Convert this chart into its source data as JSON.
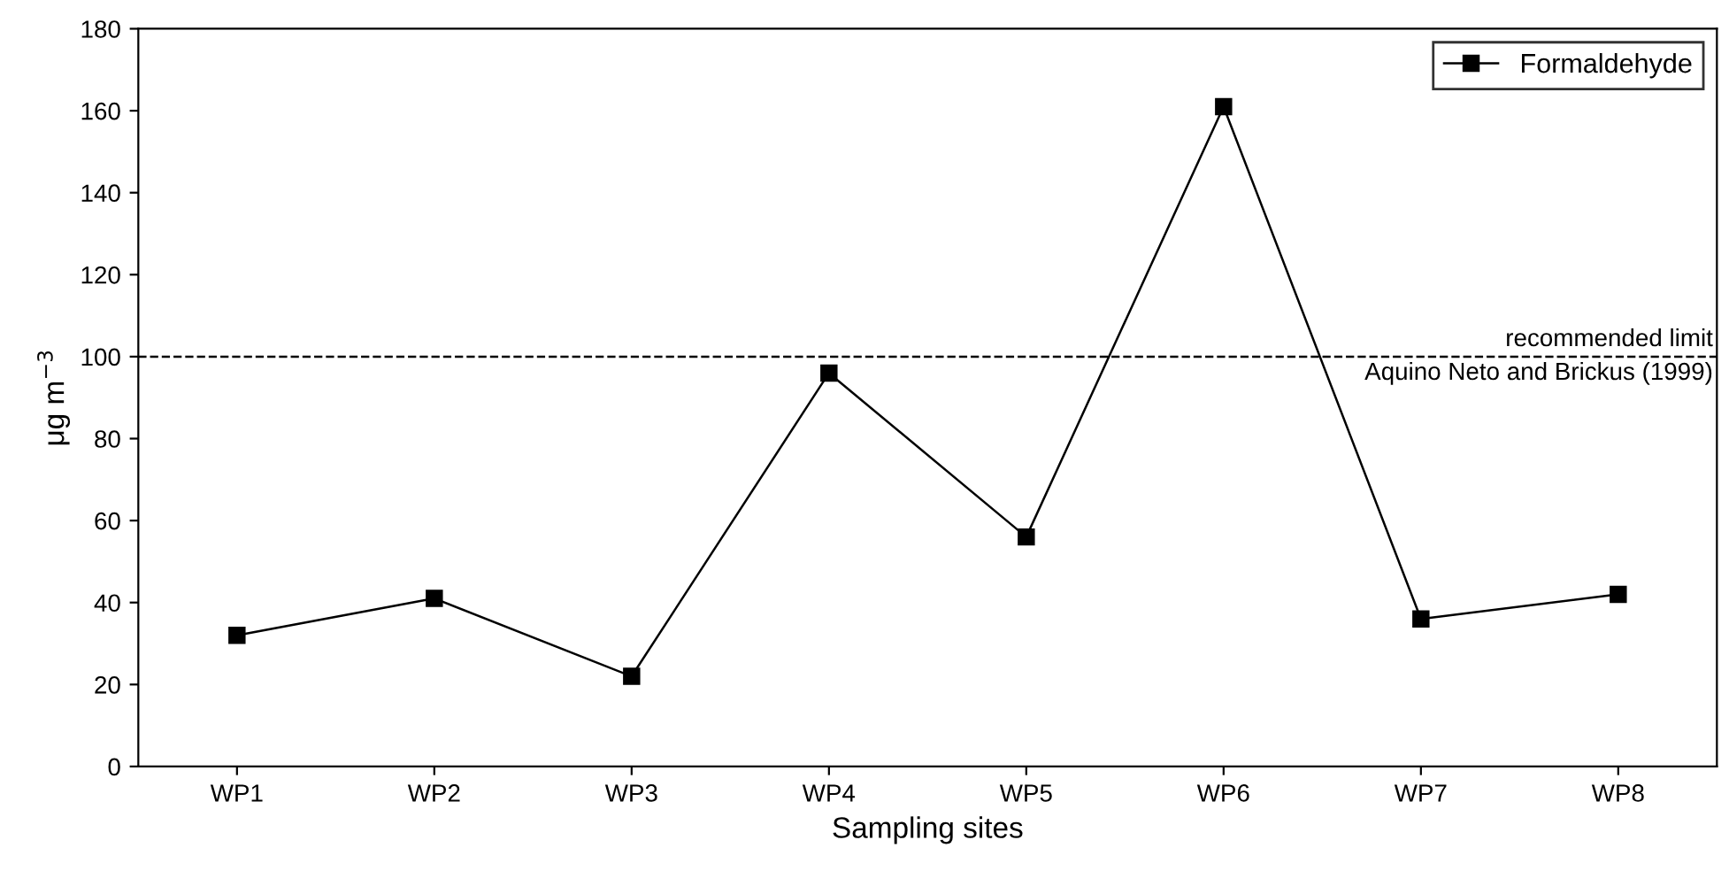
{
  "chart_data": {
    "type": "line",
    "xlabel": "Sampling sites",
    "ylabel": "μg m$^{−3}$",
    "categories": [
      "WP1",
      "WP2",
      "WP3",
      "WP4",
      "WP5",
      "WP6",
      "WP7",
      "WP8"
    ],
    "series": [
      {
        "name": "Formaldehyde",
        "color": "#000000",
        "values": [
          32,
          41,
          22,
          96,
          56,
          161,
          36,
          42
        ]
      }
    ],
    "ylim": [
      0,
      180
    ],
    "yticks": [
      0,
      20,
      40,
      60,
      80,
      100,
      120,
      140,
      160,
      180
    ],
    "ref_lines": [
      {
        "axis": "y",
        "value": 100,
        "label": "recommended limit\nAquino Neto and Brickus (1999)",
        "color": "#000000",
        "line_style": "dashed"
      }
    ],
    "marker": "square",
    "line_style": "solid",
    "legend": "top right",
    "grid": false
  }
}
